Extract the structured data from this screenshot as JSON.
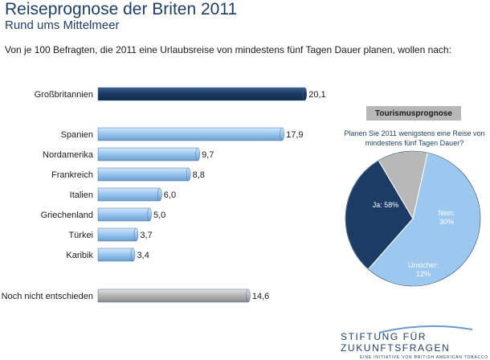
{
  "header": {
    "title": "Reiseprognose der Briten 2011",
    "subtitle": "Rund ums Mittelmeer",
    "intro": "Von je 100 Befragten, die 2011 eine Urlaubsreise von mindestens fünf Tagen Dauer planen, wollen nach:"
  },
  "chart_data": [
    {
      "type": "bar",
      "orientation": "horizontal",
      "categories": [
        "Großbritannien",
        "Spanien",
        "Nordamerika",
        "Frankreich",
        "Italien",
        "Griechenland",
        "Türkei",
        "Karibik",
        "Noch nicht entschieden"
      ],
      "values": [
        20.1,
        17.9,
        9.7,
        8.8,
        6.0,
        5.0,
        3.7,
        3.4,
        14.6
      ],
      "value_labels": [
        "20,1",
        "17,9",
        "9,7",
        "8,8",
        "6,0",
        "5,0",
        "3,7",
        "3,4",
        "14,6"
      ],
      "colors": [
        "#1c3c66",
        "#9cc8f0",
        "#9cc8f0",
        "#9cc8f0",
        "#9cc8f0",
        "#9cc8f0",
        "#9cc8f0",
        "#9cc8f0",
        "#b8b8b8"
      ],
      "highlight": "Großbritannien"
    },
    {
      "type": "pie",
      "box_label": "Tourismusprognose",
      "title": "Planen Sie 2011 wenigstens eine Reise von mindestens fünf Tagen Dauer?",
      "slices": [
        {
          "label": "Ja: 58%",
          "value": 58,
          "color": "#9cc8f0"
        },
        {
          "label": "Nein: 30%",
          "value": 30,
          "color": "#1c3c66"
        },
        {
          "label": "Unsicher: 12%",
          "value": 12,
          "color": "#b8b8b8"
        }
      ]
    }
  ],
  "footer": {
    "logo_main": "STIFTUNG FÜR ZUKUNFTSFRAGEN",
    "logo_sub": "EINE INITIATIVE VON BRITISH AMERICAN TOBACCO"
  }
}
